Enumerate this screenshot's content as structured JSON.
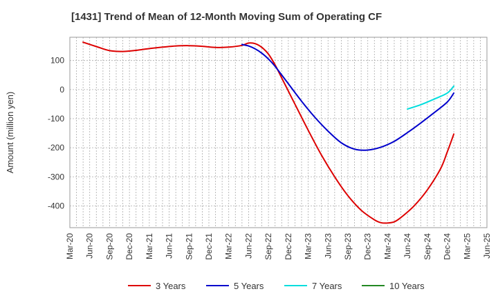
{
  "chart_data": {
    "type": "line",
    "title": "[1431]  Trend of Mean of 12-Month Moving Sum of Operating CF",
    "xlabel": "",
    "ylabel": "Amount (million yen)",
    "ylim": [
      -475,
      180
    ],
    "yticks": [
      100,
      0,
      -100,
      -200,
      -300,
      -400
    ],
    "ytick_labels": [
      "100",
      "0",
      "-100",
      "-200",
      "-300",
      "-400"
    ],
    "x_start": "Mar-20",
    "x_end": "Jun-25",
    "x_tick_labels": [
      "Mar-20",
      "Jun-20",
      "Sep-20",
      "Dec-20",
      "Mar-21",
      "Jun-21",
      "Sep-21",
      "Dec-21",
      "Mar-22",
      "Jun-22",
      "Sep-22",
      "Dec-22",
      "Mar-23",
      "Jun-23",
      "Sep-23",
      "Dec-23",
      "Mar-24",
      "Jun-24",
      "Sep-24",
      "Dec-24",
      "Mar-25",
      "Jun-25"
    ],
    "grid": true,
    "legend_position": "bottom",
    "series": [
      {
        "name": "3 Years",
        "color": "#dd0000",
        "points": [
          [
            "May-20",
            163
          ],
          [
            "Jul-20",
            148
          ],
          [
            "Sep-20",
            134
          ],
          [
            "Nov-20",
            131
          ],
          [
            "Jan-21",
            135
          ],
          [
            "Mar-21",
            141
          ],
          [
            "May-21",
            146
          ],
          [
            "Jul-21",
            150
          ],
          [
            "Sep-21",
            151
          ],
          [
            "Nov-21",
            149
          ],
          [
            "Jan-22",
            145
          ],
          [
            "Mar-22",
            146
          ],
          [
            "May-22",
            152
          ],
          [
            "Jun-22",
            160
          ],
          [
            "Jul-22",
            158
          ],
          [
            "Aug-22",
            145
          ],
          [
            "Sep-22",
            122
          ],
          [
            "Oct-22",
            85
          ],
          [
            "Nov-22",
            40
          ],
          [
            "Dec-22",
            -5
          ],
          [
            "Jan-23",
            -50
          ],
          [
            "Mar-23",
            -140
          ],
          [
            "May-23",
            -225
          ],
          [
            "Jul-23",
            -300
          ],
          [
            "Sep-23",
            -365
          ],
          [
            "Nov-23",
            -415
          ],
          [
            "Jan-24",
            -448
          ],
          [
            "Feb-24",
            -458
          ],
          [
            "Mar-24",
            -459
          ],
          [
            "Apr-24",
            -455
          ],
          [
            "May-24",
            -440
          ],
          [
            "Jul-24",
            -400
          ],
          [
            "Sep-24",
            -345
          ],
          [
            "Nov-24",
            -272
          ],
          [
            "Dec-24",
            -215
          ],
          [
            "Jan-25",
            -153
          ]
        ]
      },
      {
        "name": "5 Years",
        "color": "#0000cc",
        "points": [
          [
            "May-22",
            155
          ],
          [
            "Jun-22",
            150
          ],
          [
            "Jul-22",
            140
          ],
          [
            "Aug-22",
            125
          ],
          [
            "Sep-22",
            105
          ],
          [
            "Oct-22",
            80
          ],
          [
            "Dec-22",
            20
          ],
          [
            "Feb-23",
            -40
          ],
          [
            "Apr-23",
            -95
          ],
          [
            "Jun-23",
            -143
          ],
          [
            "Aug-23",
            -183
          ],
          [
            "Oct-23",
            -205
          ],
          [
            "Dec-23",
            -208
          ],
          [
            "Feb-24",
            -198
          ],
          [
            "Apr-24",
            -178
          ],
          [
            "Jun-24",
            -148
          ],
          [
            "Aug-24",
            -115
          ],
          [
            "Oct-24",
            -80
          ],
          [
            "Dec-24",
            -43
          ],
          [
            "Jan-25",
            -12
          ]
        ]
      },
      {
        "name": "7 Years",
        "color": "#00dddd",
        "points": [
          [
            "Jun-24",
            -67
          ],
          [
            "Aug-24",
            -52
          ],
          [
            "Oct-24",
            -33
          ],
          [
            "Dec-24",
            -12
          ],
          [
            "Jan-25",
            12
          ]
        ]
      },
      {
        "name": "10 Years",
        "color": "#228822",
        "points": []
      }
    ]
  }
}
